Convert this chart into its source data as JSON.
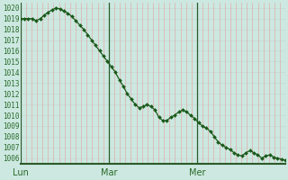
{
  "ylabel_values": [
    1006,
    1007,
    1008,
    1009,
    1010,
    1011,
    1012,
    1013,
    1014,
    1015,
    1016,
    1017,
    1018,
    1019,
    1020
  ],
  "ylim": [
    1005.5,
    1020.5
  ],
  "xlim": [
    0,
    48
  ],
  "xtick_positions": [
    0,
    16,
    32
  ],
  "xtick_labels": [
    "Lun",
    "Mar",
    "Mer"
  ],
  "vline_positions": [
    0,
    16,
    32
  ],
  "bg_color": "#cce8e0",
  "grid_color_v": "#e8a0a0",
  "grid_color_h": "#c8d8d0",
  "line_color": "#1a5a1a",
  "marker_color": "#1a5a1a",
  "tick_color": "#2a6a2a",
  "axis_color": "#2a5a2a",
  "y_values": [
    1019.0,
    1019.0,
    1019.0,
    1019.0,
    1018.8,
    1019.0,
    1019.3,
    1019.6,
    1019.8,
    1020.0,
    1019.9,
    1019.7,
    1019.5,
    1019.2,
    1018.8,
    1018.4,
    1018.0,
    1017.5,
    1017.0,
    1016.5,
    1016.0,
    1015.5,
    1015.0,
    1014.5,
    1014.0,
    1013.3,
    1012.7,
    1012.0,
    1011.5,
    1011.0,
    1010.7,
    1010.8,
    1011.0,
    1010.8,
    1010.5,
    1009.8,
    1009.5,
    1009.5,
    1009.8,
    1010.0,
    1010.3,
    1010.5,
    1010.3,
    1010.0,
    1009.7,
    1009.3,
    1009.0,
    1008.8,
    1008.5,
    1008.0,
    1007.5,
    1007.2,
    1007.0,
    1006.8,
    1006.5,
    1006.3,
    1006.2,
    1006.5,
    1006.7,
    1006.5,
    1006.3,
    1006.0,
    1006.2,
    1006.3,
    1006.1,
    1006.0,
    1005.9,
    1005.8
  ]
}
